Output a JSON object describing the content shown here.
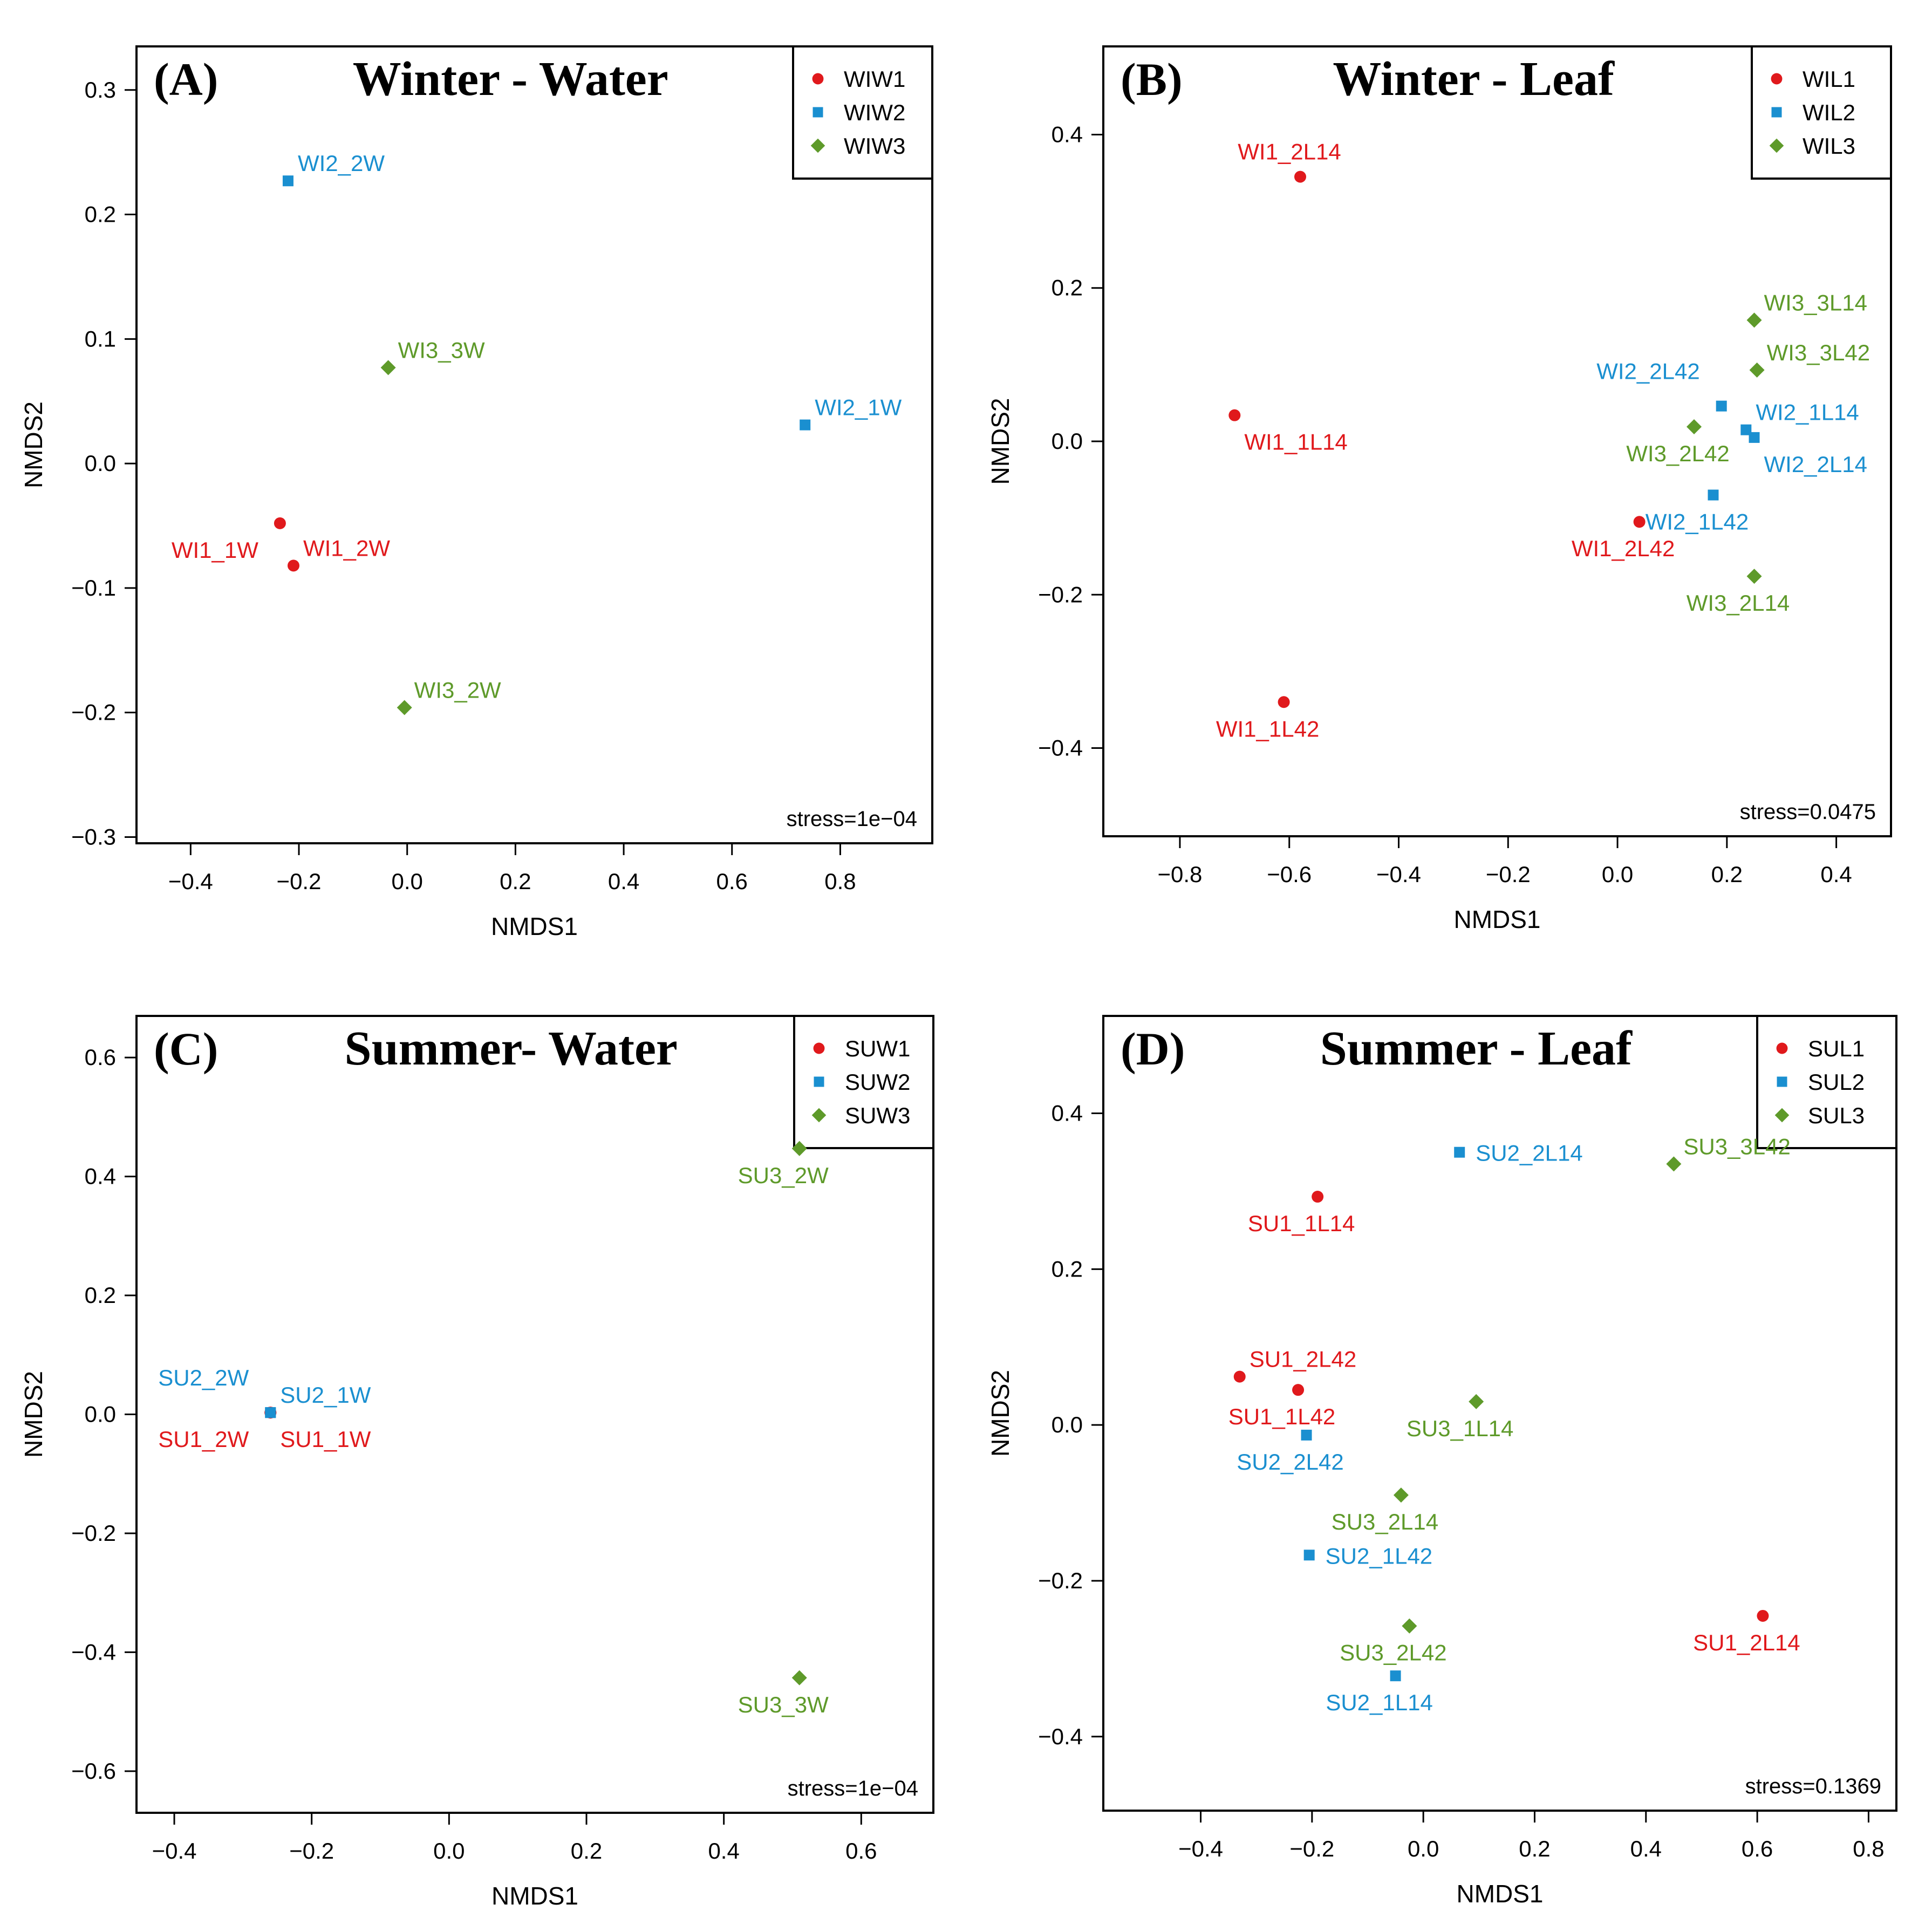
{
  "colors": {
    "group1": "#e0191c",
    "group2": "#1a8fd0",
    "group3": "#5e9a2a",
    "axis": "#000000"
  },
  "chart_data": [
    {
      "type": "scatter",
      "panel_label": "(A)",
      "title": "Winter - Water",
      "xlabel": "NMDS1",
      "ylabel": "NMDS2",
      "xlim": [
        -0.5,
        0.97
      ],
      "ylim": [
        -0.305,
        0.335
      ],
      "xticks": [
        -0.4,
        -0.2,
        0.0,
        0.2,
        0.4,
        0.6,
        0.8
      ],
      "xtick_labels": [
        "−0.4",
        "−0.2",
        "0.0",
        "0.2",
        "0.4",
        "0.6",
        "0.8"
      ],
      "yticks": [
        -0.3,
        -0.2,
        -0.1,
        0.0,
        0.1,
        0.2,
        0.3
      ],
      "ytick_labels": [
        "−0.3",
        "−0.2",
        "−0.1",
        "0.0",
        "0.1",
        "0.2",
        "0.3"
      ],
      "stress": "stress=1e−04",
      "legend": [
        {
          "label": "WIW1",
          "marker": "circle",
          "color": "#e0191c"
        },
        {
          "label": "WIW2",
          "marker": "square",
          "color": "#1a8fd0"
        },
        {
          "label": "WIW3",
          "marker": "diamond",
          "color": "#5e9a2a"
        }
      ],
      "points": [
        {
          "label": "WI1_1W",
          "x": -0.235,
          "y": -0.048,
          "group": 0,
          "lpos": "bl"
        },
        {
          "label": "WI1_2W",
          "x": -0.21,
          "y": -0.082,
          "group": 0,
          "lpos": "tr"
        },
        {
          "label": "WI2_2W",
          "x": -0.22,
          "y": 0.227,
          "group": 1,
          "lpos": "tr"
        },
        {
          "label": "WI2_1W",
          "x": 0.735,
          "y": 0.031,
          "group": 1,
          "lpos": "tr"
        },
        {
          "label": "WI3_3W",
          "x": -0.035,
          "y": 0.077,
          "group": 2,
          "lpos": "tr"
        },
        {
          "label": "WI3_2W",
          "x": -0.005,
          "y": -0.196,
          "group": 2,
          "lpos": "tr"
        }
      ]
    },
    {
      "type": "scatter",
      "panel_label": "(B)",
      "title": "Winter - Leaf",
      "xlabel": "NMDS1",
      "ylabel": "NMDS2",
      "xlim": [
        -0.94,
        0.5
      ],
      "ylim": [
        -0.515,
        0.515
      ],
      "xticks": [
        -0.8,
        -0.6,
        -0.4,
        -0.2,
        0.0,
        0.2,
        0.4
      ],
      "xtick_labels": [
        "−0.8",
        "−0.6",
        "−0.4",
        "−0.2",
        "0.0",
        "0.2",
        "0.4"
      ],
      "yticks": [
        -0.4,
        -0.2,
        0.0,
        0.2,
        0.4
      ],
      "ytick_labels": [
        "−0.4",
        "−0.2",
        "0.0",
        "0.2",
        "0.4"
      ],
      "stress": "stress=0.0475",
      "legend": [
        {
          "label": "WIL1",
          "marker": "circle",
          "color": "#e0191c"
        },
        {
          "label": "WIL2",
          "marker": "square",
          "color": "#1a8fd0"
        },
        {
          "label": "WIL3",
          "marker": "diamond",
          "color": "#5e9a2a"
        }
      ],
      "points": [
        {
          "label": "WI1_2L14",
          "x": -0.58,
          "y": 0.345,
          "group": 0,
          "lpos": "above"
        },
        {
          "label": "WI1_1L14",
          "x": -0.7,
          "y": 0.034,
          "group": 0,
          "lpos": "br"
        },
        {
          "label": "WI1_2L42",
          "x": 0.04,
          "y": -0.105,
          "group": 0,
          "lpos": "below"
        },
        {
          "label": "WI1_1L42",
          "x": -0.61,
          "y": -0.34,
          "group": 0,
          "lpos": "below"
        },
        {
          "label": "WI2_2L42",
          "x": 0.19,
          "y": 0.046,
          "group": 1,
          "lpos": "tl"
        },
        {
          "label": "WI2_1L14",
          "x": 0.235,
          "y": 0.015,
          "group": 1,
          "lpos": "tr"
        },
        {
          "label": "WI2_2L14",
          "x": 0.25,
          "y": 0.005,
          "group": 1,
          "lpos": "br"
        },
        {
          "label": "WI2_1L42",
          "x": 0.175,
          "y": -0.07,
          "group": 1,
          "lpos": "below"
        },
        {
          "label": "WI3_3L14",
          "x": 0.25,
          "y": 0.158,
          "group": 2,
          "lpos": "tr"
        },
        {
          "label": "WI3_3L42",
          "x": 0.255,
          "y": 0.093,
          "group": 2,
          "lpos": "tr"
        },
        {
          "label": "WI3_2L42",
          "x": 0.14,
          "y": 0.019,
          "group": 2,
          "lpos": "below"
        },
        {
          "label": "WI3_2L14",
          "x": 0.25,
          "y": -0.176,
          "group": 2,
          "lpos": "below"
        }
      ]
    },
    {
      "type": "scatter",
      "panel_label": "(C)",
      "title": "Summer- Water",
      "xlabel": "NMDS1",
      "ylabel": "NMDS2",
      "xlim": [
        -0.455,
        0.705
      ],
      "ylim": [
        -0.67,
        0.67
      ],
      "xticks": [
        -0.4,
        -0.2,
        0.0,
        0.2,
        0.4,
        0.6
      ],
      "xtick_labels": [
        "−0.4",
        "−0.2",
        "0.0",
        "0.2",
        "0.4",
        "0.6"
      ],
      "yticks": [
        -0.6,
        -0.4,
        -0.2,
        0.0,
        0.2,
        0.4,
        0.6
      ],
      "ytick_labels": [
        "−0.6",
        "−0.4",
        "−0.2",
        "0.0",
        "0.2",
        "0.4",
        "0.6"
      ],
      "stress": "stress=1e−04",
      "legend": [
        {
          "label": "SUW1",
          "marker": "circle",
          "color": "#e0191c"
        },
        {
          "label": "SUW2",
          "marker": "square",
          "color": "#1a8fd0"
        },
        {
          "label": "SUW3",
          "marker": "diamond",
          "color": "#5e9a2a"
        }
      ],
      "points": [
        {
          "label": "SU1_2W",
          "x": -0.26,
          "y": 0.003,
          "group": 0,
          "lpos": "bl"
        },
        {
          "label": "SU1_1W",
          "x": -0.26,
          "y": 0.003,
          "group": 0,
          "lpos": "br"
        },
        {
          "label": "SU2_2W",
          "x": -0.26,
          "y": 0.003,
          "group": 1,
          "lpos": "tl"
        },
        {
          "label": "SU2_1W",
          "x": -0.26,
          "y": 0.003,
          "group": 1,
          "lpos": "tr"
        },
        {
          "label": "SU3_2W",
          "x": 0.51,
          "y": 0.447,
          "group": 2,
          "lpos": "below"
        },
        {
          "label": "SU3_3W",
          "x": 0.51,
          "y": -0.443,
          "group": 2,
          "lpos": "below"
        }
      ]
    },
    {
      "type": "scatter",
      "panel_label": "(D)",
      "title": "Summer - Leaf",
      "xlabel": "NMDS1",
      "ylabel": "NMDS2",
      "xlim": [
        -0.575,
        0.85
      ],
      "ylim": [
        -0.495,
        0.525
      ],
      "xticks": [
        -0.4,
        -0.2,
        0.0,
        0.2,
        0.4,
        0.6,
        0.8
      ],
      "xtick_labels": [
        "−0.4",
        "−0.2",
        "0.0",
        "0.2",
        "0.4",
        "0.6",
        "0.8"
      ],
      "yticks": [
        -0.4,
        -0.2,
        0.0,
        0.2,
        0.4
      ],
      "ytick_labels": [
        "−0.4",
        "−0.2",
        "0.0",
        "0.2",
        "0.4"
      ],
      "stress": "stress=0.1369",
      "legend": [
        {
          "label": "SUL1",
          "marker": "circle",
          "color": "#e0191c"
        },
        {
          "label": "SUL2",
          "marker": "square",
          "color": "#1a8fd0"
        },
        {
          "label": "SUL3",
          "marker": "diamond",
          "color": "#5e9a2a"
        }
      ],
      "points": [
        {
          "label": "SU1_1L14",
          "x": -0.19,
          "y": 0.293,
          "group": 0,
          "lpos": "below"
        },
        {
          "label": "SU1_2L42",
          "x": -0.33,
          "y": 0.062,
          "group": 0,
          "lpos": "tr"
        },
        {
          "label": "SU1_1L42",
          "x": -0.225,
          "y": 0.045,
          "group": 0,
          "lpos": "below"
        },
        {
          "label": "SU1_2L14",
          "x": 0.61,
          "y": -0.245,
          "group": 0,
          "lpos": "below"
        },
        {
          "label": "SU2_2L14",
          "x": 0.065,
          "y": 0.35,
          "group": 1,
          "lpos": "right"
        },
        {
          "label": "SU2_2L42",
          "x": -0.21,
          "y": -0.013,
          "group": 1,
          "lpos": "below"
        },
        {
          "label": "SU2_1L42",
          "x": -0.205,
          "y": -0.167,
          "group": 1,
          "lpos": "right"
        },
        {
          "label": "SU2_1L14",
          "x": -0.05,
          "y": -0.322,
          "group": 1,
          "lpos": "below"
        },
        {
          "label": "SU3_3L42",
          "x": 0.45,
          "y": 0.335,
          "group": 2,
          "lpos": "tr"
        },
        {
          "label": "SU3_1L14",
          "x": 0.095,
          "y": 0.03,
          "group": 2,
          "lpos": "below"
        },
        {
          "label": "SU3_2L14",
          "x": -0.04,
          "y": -0.09,
          "group": 2,
          "lpos": "below"
        },
        {
          "label": "SU3_2L42",
          "x": -0.025,
          "y": -0.258,
          "group": 2,
          "lpos": "below"
        }
      ]
    }
  ]
}
